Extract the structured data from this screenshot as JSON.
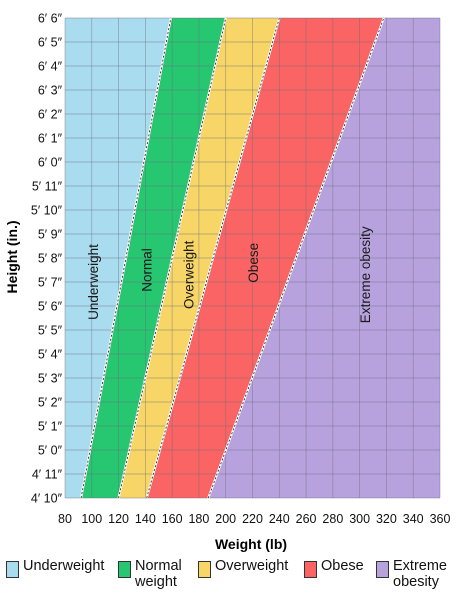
{
  "chart_data": {
    "type": "area",
    "xlabel": "Weight (lb)",
    "ylabel": "Height (in.)",
    "xlim": [
      80,
      360
    ],
    "ylim": [
      58,
      78
    ],
    "x_ticks": [
      80,
      100,
      120,
      140,
      160,
      180,
      200,
      220,
      240,
      260,
      280,
      300,
      320,
      340,
      360
    ],
    "y_ticks": [
      {
        "value": 58,
        "label": "4′ 10″"
      },
      {
        "value": 59,
        "label": "4′ 11″"
      },
      {
        "value": 60,
        "label": "5′ 0″"
      },
      {
        "value": 61,
        "label": "5′ 1″"
      },
      {
        "value": 62,
        "label": "5′ 2″"
      },
      {
        "value": 63,
        "label": "5′ 3″"
      },
      {
        "value": 64,
        "label": "5′ 4″"
      },
      {
        "value": 65,
        "label": "5′ 5″"
      },
      {
        "value": 66,
        "label": "5′ 6″"
      },
      {
        "value": 67,
        "label": "5′ 7″"
      },
      {
        "value": 68,
        "label": "5′ 8″"
      },
      {
        "value": 69,
        "label": "5′ 9″"
      },
      {
        "value": 70,
        "label": "5′ 10″"
      },
      {
        "value": 71,
        "label": "5′ 11″"
      },
      {
        "value": 72,
        "label": "6′ 0″"
      },
      {
        "value": 73,
        "label": "6′ 1″"
      },
      {
        "value": 74,
        "label": "6′ 2″"
      },
      {
        "value": 75,
        "label": "6′ 3″"
      },
      {
        "value": 76,
        "label": "6′ 4″"
      },
      {
        "value": 77,
        "label": "6′ 5″"
      },
      {
        "value": 78,
        "label": "6′ 6″"
      }
    ],
    "boundaries": [
      {
        "name": "underweight-normal",
        "points": [
          [
            92,
            58
          ],
          [
            159,
            78
          ]
        ]
      },
      {
        "name": "normal-overweight",
        "points": [
          [
            120,
            58
          ],
          [
            200,
            78
          ]
        ]
      },
      {
        "name": "overweight-obese",
        "points": [
          [
            141,
            58
          ],
          [
            240,
            78
          ]
        ]
      },
      {
        "name": "obese-extreme",
        "points": [
          [
            187,
            58
          ],
          [
            318,
            78
          ]
        ]
      }
    ],
    "series": [
      {
        "name": "Underweight",
        "color": "#a9dcee",
        "label": "Underweight"
      },
      {
        "name": "Normal weight",
        "color": "#26c770",
        "label": "Normal"
      },
      {
        "name": "Overweight",
        "color": "#f7d566",
        "label": "Overweight"
      },
      {
        "name": "Obese",
        "color": "#fa6464",
        "label": "Obese"
      },
      {
        "name": "Extreme obesity",
        "color": "#b7a2de",
        "label": "Extreme obesity"
      }
    ],
    "region_label_y": [
      67,
      67.5,
      67.3,
      67.8,
      67.3
    ],
    "grid": true
  },
  "legend": [
    {
      "label": "Underweight",
      "color": "#a9dcee"
    },
    {
      "label": "Normal\nweight",
      "color": "#26c770"
    },
    {
      "label": "Overweight",
      "color": "#f7d566"
    },
    {
      "label": "Obese",
      "color": "#fa6464"
    },
    {
      "label": "Extreme\nobesity",
      "color": "#b7a2de"
    }
  ]
}
